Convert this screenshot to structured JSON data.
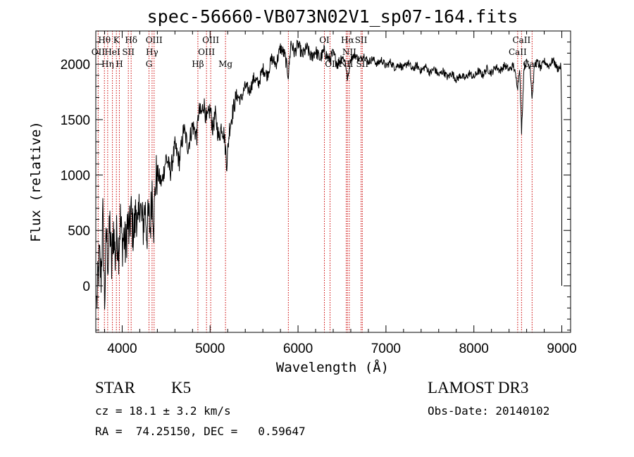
{
  "chart_data": {
    "type": "line",
    "title": "spec-56660-VB073N02V1_sp07-164.fits",
    "xlabel": "Wavelength (Å)",
    "ylabel": "Flux (relative)",
    "xlim": [
      3700,
      9100
    ],
    "ylim": [
      -420,
      2300
    ],
    "x_ticks": [
      4000,
      5000,
      6000,
      7000,
      8000,
      9000
    ],
    "y_ticks": [
      0,
      500,
      1000,
      1500,
      2000
    ],
    "x_tick_labels": [
      "4000",
      "5000",
      "6000",
      "7000",
      "8000",
      "9000"
    ],
    "y_tick_labels": [
      "0",
      "500",
      "1000",
      "1500",
      "2000"
    ],
    "series": [
      {
        "name": "flux",
        "color": "#000000",
        "points": [
          [
            3710,
            -160
          ],
          [
            3740,
            250
          ],
          [
            3760,
            80
          ],
          [
            3780,
            620
          ],
          [
            3800,
            -150
          ],
          [
            3820,
            480
          ],
          [
            3840,
            200
          ],
          [
            3860,
            560
          ],
          [
            3880,
            150
          ],
          [
            3900,
            540
          ],
          [
            3920,
            250
          ],
          [
            3940,
            480
          ],
          [
            3960,
            330
          ],
          [
            3980,
            600
          ],
          [
            4000,
            380
          ],
          [
            4020,
            450
          ],
          [
            4040,
            320
          ],
          [
            4060,
            580
          ],
          [
            4080,
            450
          ],
          [
            4100,
            680
          ],
          [
            4120,
            500
          ],
          [
            4140,
            520
          ],
          [
            4160,
            720
          ],
          [
            4180,
            460
          ],
          [
            4200,
            800
          ],
          [
            4220,
            600
          ],
          [
            4240,
            540
          ],
          [
            4260,
            720
          ],
          [
            4280,
            480
          ],
          [
            4300,
            620
          ],
          [
            4320,
            520
          ],
          [
            4340,
            900
          ],
          [
            4360,
            560
          ],
          [
            4380,
            960
          ],
          [
            4400,
            1020
          ],
          [
            4450,
            920
          ],
          [
            4500,
            1160
          ],
          [
            4550,
            1030
          ],
          [
            4600,
            1260
          ],
          [
            4650,
            1120
          ],
          [
            4700,
            1420
          ],
          [
            4750,
            1250
          ],
          [
            4800,
            1450
          ],
          [
            4850,
            1350
          ],
          [
            4870,
            1580
          ],
          [
            4900,
            1550
          ],
          [
            4930,
            1650
          ],
          [
            4960,
            1480
          ],
          [
            5000,
            1600
          ],
          [
            5030,
            1420
          ],
          [
            5060,
            1540
          ],
          [
            5100,
            1330
          ],
          [
            5130,
            1450
          ],
          [
            5160,
            1360
          ],
          [
            5190,
            1100
          ],
          [
            5220,
            1420
          ],
          [
            5260,
            1580
          ],
          [
            5300,
            1720
          ],
          [
            5350,
            1680
          ],
          [
            5400,
            1800
          ],
          [
            5450,
            1760
          ],
          [
            5500,
            1880
          ],
          [
            5550,
            1820
          ],
          [
            5600,
            1960
          ],
          [
            5650,
            1900
          ],
          [
            5700,
            2050
          ],
          [
            5750,
            2000
          ],
          [
            5800,
            2150
          ],
          [
            5850,
            2080
          ],
          [
            5890,
            1900
          ],
          [
            5920,
            2200
          ],
          [
            5960,
            2100
          ],
          [
            6000,
            2180
          ],
          [
            6050,
            2080
          ],
          [
            6100,
            2150
          ],
          [
            6150,
            2060
          ],
          [
            6200,
            2120
          ],
          [
            6250,
            2050
          ],
          [
            6300,
            2120
          ],
          [
            6350,
            2040
          ],
          [
            6400,
            2090
          ],
          [
            6450,
            2000
          ],
          [
            6500,
            2070
          ],
          [
            6540,
            2020
          ],
          [
            6563,
            1850
          ],
          [
            6600,
            2060
          ],
          [
            6650,
            2080
          ],
          [
            6700,
            2040
          ],
          [
            6750,
            2080
          ],
          [
            6800,
            2020
          ],
          [
            6850,
            2050
          ],
          [
            6900,
            2000
          ],
          [
            6950,
            2040
          ],
          [
            7000,
            1980
          ],
          [
            7050,
            2020
          ],
          [
            7100,
            1970
          ],
          [
            7150,
            2000
          ],
          [
            7200,
            1960
          ],
          [
            7250,
            2020
          ],
          [
            7300,
            1950
          ],
          [
            7350,
            1990
          ],
          [
            7400,
            1940
          ],
          [
            7450,
            1980
          ],
          [
            7500,
            1920
          ],
          [
            7550,
            1960
          ],
          [
            7600,
            1900
          ],
          [
            7650,
            1940
          ],
          [
            7700,
            1880
          ],
          [
            7750,
            1920
          ],
          [
            7800,
            1860
          ],
          [
            7850,
            1900
          ],
          [
            7900,
            1870
          ],
          [
            7950,
            1920
          ],
          [
            8000,
            1880
          ],
          [
            8050,
            1940
          ],
          [
            8100,
            1900
          ],
          [
            8150,
            1960
          ],
          [
            8200,
            1920
          ],
          [
            8250,
            1980
          ],
          [
            8300,
            1940
          ],
          [
            8350,
            1990
          ],
          [
            8400,
            1950
          ],
          [
            8450,
            1990
          ],
          [
            8498,
            1800
          ],
          [
            8520,
            1980
          ],
          [
            8542,
            1400
          ],
          [
            8570,
            1970
          ],
          [
            8600,
            2020
          ],
          [
            8640,
            1980
          ],
          [
            8662,
            1690
          ],
          [
            8690,
            1990
          ],
          [
            8720,
            2020
          ],
          [
            8760,
            1960
          ],
          [
            8800,
            2030
          ],
          [
            8850,
            1980
          ],
          [
            8900,
            2040
          ],
          [
            8950,
            1960
          ],
          [
            8990,
            1980
          ],
          [
            9000,
            1350
          ],
          [
            9000,
            0
          ]
        ]
      }
    ],
    "line_markers": [
      {
        "label": "Hθ",
        "x": 3798,
        "row": 1
      },
      {
        "label": "OII",
        "x": 3727,
        "row": 2
      },
      {
        "label": "Hη",
        "x": 3835,
        "row": 3
      },
      {
        "label": "K",
        "x": 3934,
        "row": 1
      },
      {
        "label": "HeI",
        "x": 3889,
        "row": 2
      },
      {
        "label": "H",
        "x": 3968,
        "row": 3
      },
      {
        "label": "SII",
        "x": 4070,
        "row": 2
      },
      {
        "label": "Hδ",
        "x": 4102,
        "row": 1
      },
      {
        "label": "OIII",
        "x": 4363,
        "row": 1
      },
      {
        "label": "Hγ",
        "x": 4340,
        "row": 2
      },
      {
        "label": "G",
        "x": 4305,
        "row": 3
      },
      {
        "label": "OIII",
        "x": 5007,
        "row": 1
      },
      {
        "label": "OIII",
        "x": 4959,
        "row": 2
      },
      {
        "label": "Hβ",
        "x": 4861,
        "row": 3
      },
      {
        "label": "Mg",
        "x": 5175,
        "row": 3
      },
      {
        "label": "",
        "x": 5890,
        "row": 0
      },
      {
        "label": "OI",
        "x": 6300,
        "row": 1
      },
      {
        "label": "OI",
        "x": 6364,
        "row": 3
      },
      {
        "label": "Hα",
        "x": 6563,
        "row": 1
      },
      {
        "label": "NII",
        "x": 6583,
        "row": 2
      },
      {
        "label": "NII",
        "x": 6548,
        "row": 3
      },
      {
        "label": "SII",
        "x": 6717,
        "row": 1
      },
      {
        "label": "SII",
        "x": 6731,
        "row": 3
      },
      {
        "label": "CaII",
        "x": 8542,
        "row": 1
      },
      {
        "label": "CaII",
        "x": 8498,
        "row": 2
      },
      {
        "label": "CaII",
        "x": 8662,
        "row": 3
      }
    ]
  },
  "info": {
    "object_class": "STAR",
    "subclass": "K5",
    "survey": "LAMOST DR3",
    "redshift": "cz = 18.1 ± 3.2 km/s",
    "obs_date": "Obs-Date: 20140102",
    "coordinates": "RA =  74.25150, DEC =   0.59647"
  }
}
